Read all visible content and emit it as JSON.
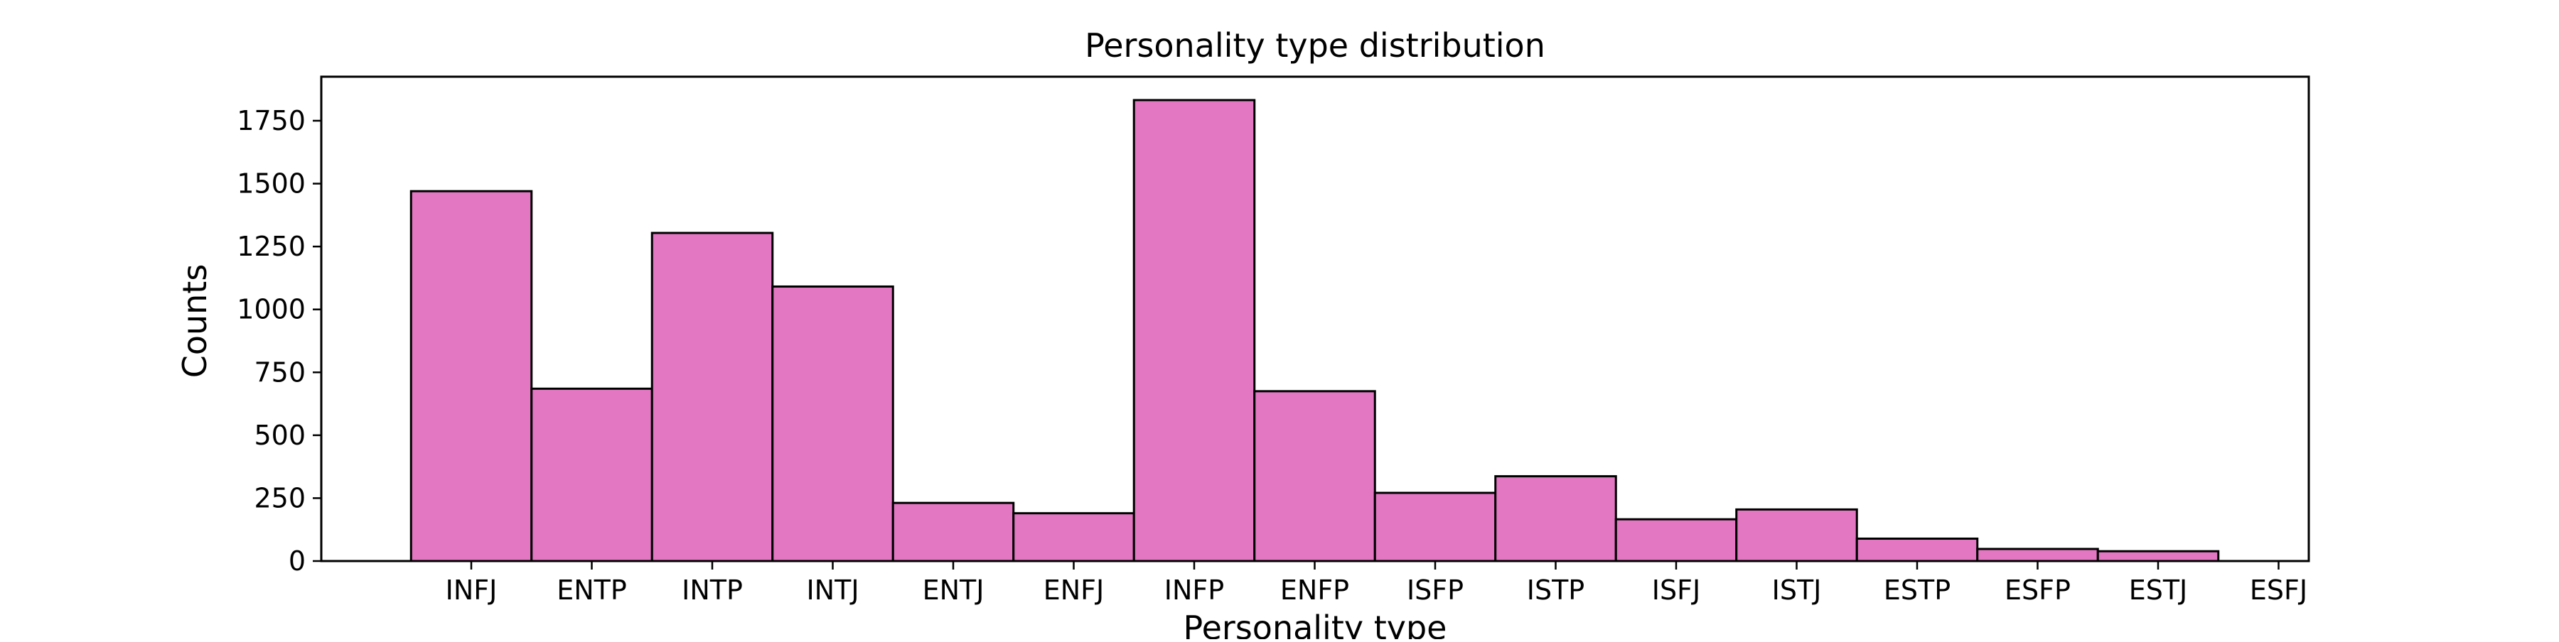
{
  "chart_data": {
    "type": "bar",
    "title": "Personality type distribution",
    "xlabel": "Personality type",
    "ylabel": "Counts",
    "categories": [
      "INFJ",
      "ENTP",
      "INTP",
      "INTJ",
      "ENTJ",
      "ENFJ",
      "INFP",
      "ENFP",
      "ISFP",
      "ISTP",
      "ISFJ",
      "ISTJ",
      "ESTP",
      "ESFP",
      "ESTJ",
      "ESFJ"
    ],
    "values": [
      1470,
      685,
      1304,
      1091,
      231,
      190,
      1832,
      675,
      271,
      337,
      166,
      205,
      89,
      48,
      39,
      0
    ],
    "ylim": [
      0,
      1925
    ],
    "yticks": [
      0,
      250,
      500,
      750,
      1000,
      1250,
      1500,
      1750
    ],
    "grid": false,
    "legend": "none",
    "colors": {
      "bar_fill": "#e377c2",
      "bar_edge": "#000000",
      "axis": "#000000"
    }
  }
}
